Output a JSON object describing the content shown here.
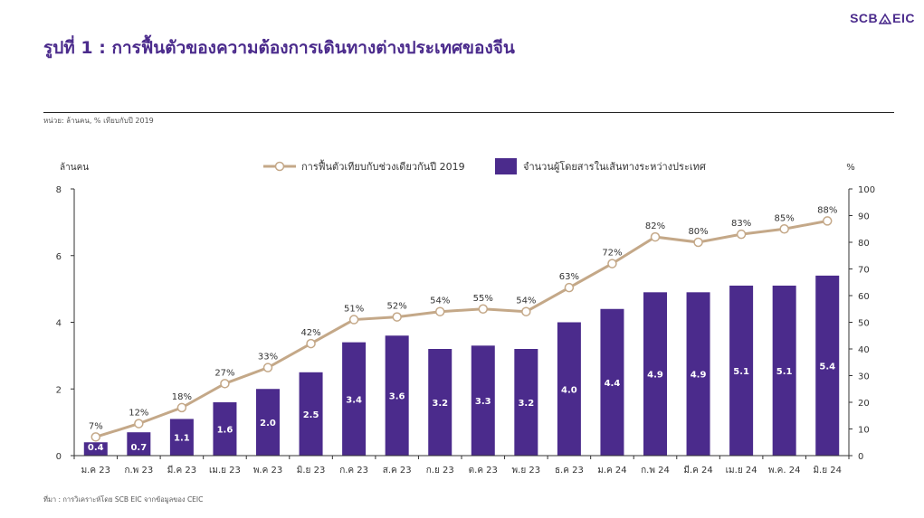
{
  "brand": "SCB EIC",
  "title": "รูปที่ 1 : การฟื้นตัวของความต้องการเดินทางต่างประเทศของจีน",
  "unit_note": "หน่วย:  ล้านคน, % เทียบกับปี 2019",
  "source": "ที่มา : การวิเคราะห์โดย SCB EIC จากข้อมูลของ CEIC",
  "colors": {
    "bar": "#4b2b8c",
    "line": "#c4a888",
    "title": "#4b2b8c"
  },
  "chart_data": {
    "type": "bar",
    "categories": [
      "ม.ค 23",
      "ก.พ 23",
      "มี.ค 23",
      "เม.ย 23",
      "พ.ค 23",
      "มิ.ย 23",
      "ก.ค 23",
      "ส.ค 23",
      "ก.ย 23",
      "ต.ค 23",
      "พ.ย 23",
      "ธ.ค 23",
      "ม.ค 24",
      "ก.พ 24",
      "มี.ค 24",
      "เม.ย 24",
      "พ.ค. 24",
      "มิ.ย 24"
    ],
    "series": [
      {
        "name": "จำนวนผู้โดยสารในเส้นทางระหว่างประเทศ",
        "type": "bar",
        "axis": "left",
        "values": [
          0.4,
          0.7,
          1.1,
          1.6,
          2.0,
          2.5,
          3.4,
          3.6,
          3.2,
          3.3,
          3.2,
          4.0,
          4.4,
          4.9,
          4.9,
          5.1,
          5.1,
          5.4
        ],
        "labels": [
          "0.4",
          "0.7",
          "1.1",
          "1.6",
          "2.0",
          "2.5",
          "3.4",
          "3.6",
          "3.2",
          "3.3",
          "3.2",
          "4.0",
          "4.4",
          "4.9",
          "4.9",
          "5.1",
          "5.1",
          "5.4"
        ]
      },
      {
        "name": "การฟื้นตัวเทียบกับช่วงเดียวกันปี 2019",
        "type": "line",
        "axis": "right",
        "values": [
          7,
          12,
          18,
          27,
          33,
          42,
          51,
          52,
          54,
          55,
          54,
          63,
          72,
          82,
          80,
          83,
          85,
          88
        ],
        "labels": [
          "7%",
          "12%",
          "18%",
          "27%",
          "33%",
          "42%",
          "51%",
          "52%",
          "54%",
          "55%",
          "54%",
          "63%",
          "72%",
          "82%",
          "80%",
          "83%",
          "85%",
          "88%"
        ]
      }
    ],
    "left_axis": {
      "label": "ล้านคน",
      "ylim": [
        0,
        8
      ],
      "ticks": [
        "0",
        "2",
        "4",
        "6",
        "8"
      ]
    },
    "right_axis": {
      "label": "%",
      "ylim": [
        0,
        100
      ],
      "ticks": [
        "0",
        "10",
        "20",
        "30",
        "40",
        "50",
        "60",
        "70",
        "80",
        "90",
        "100"
      ]
    },
    "legend_position": "top",
    "grid": false
  }
}
